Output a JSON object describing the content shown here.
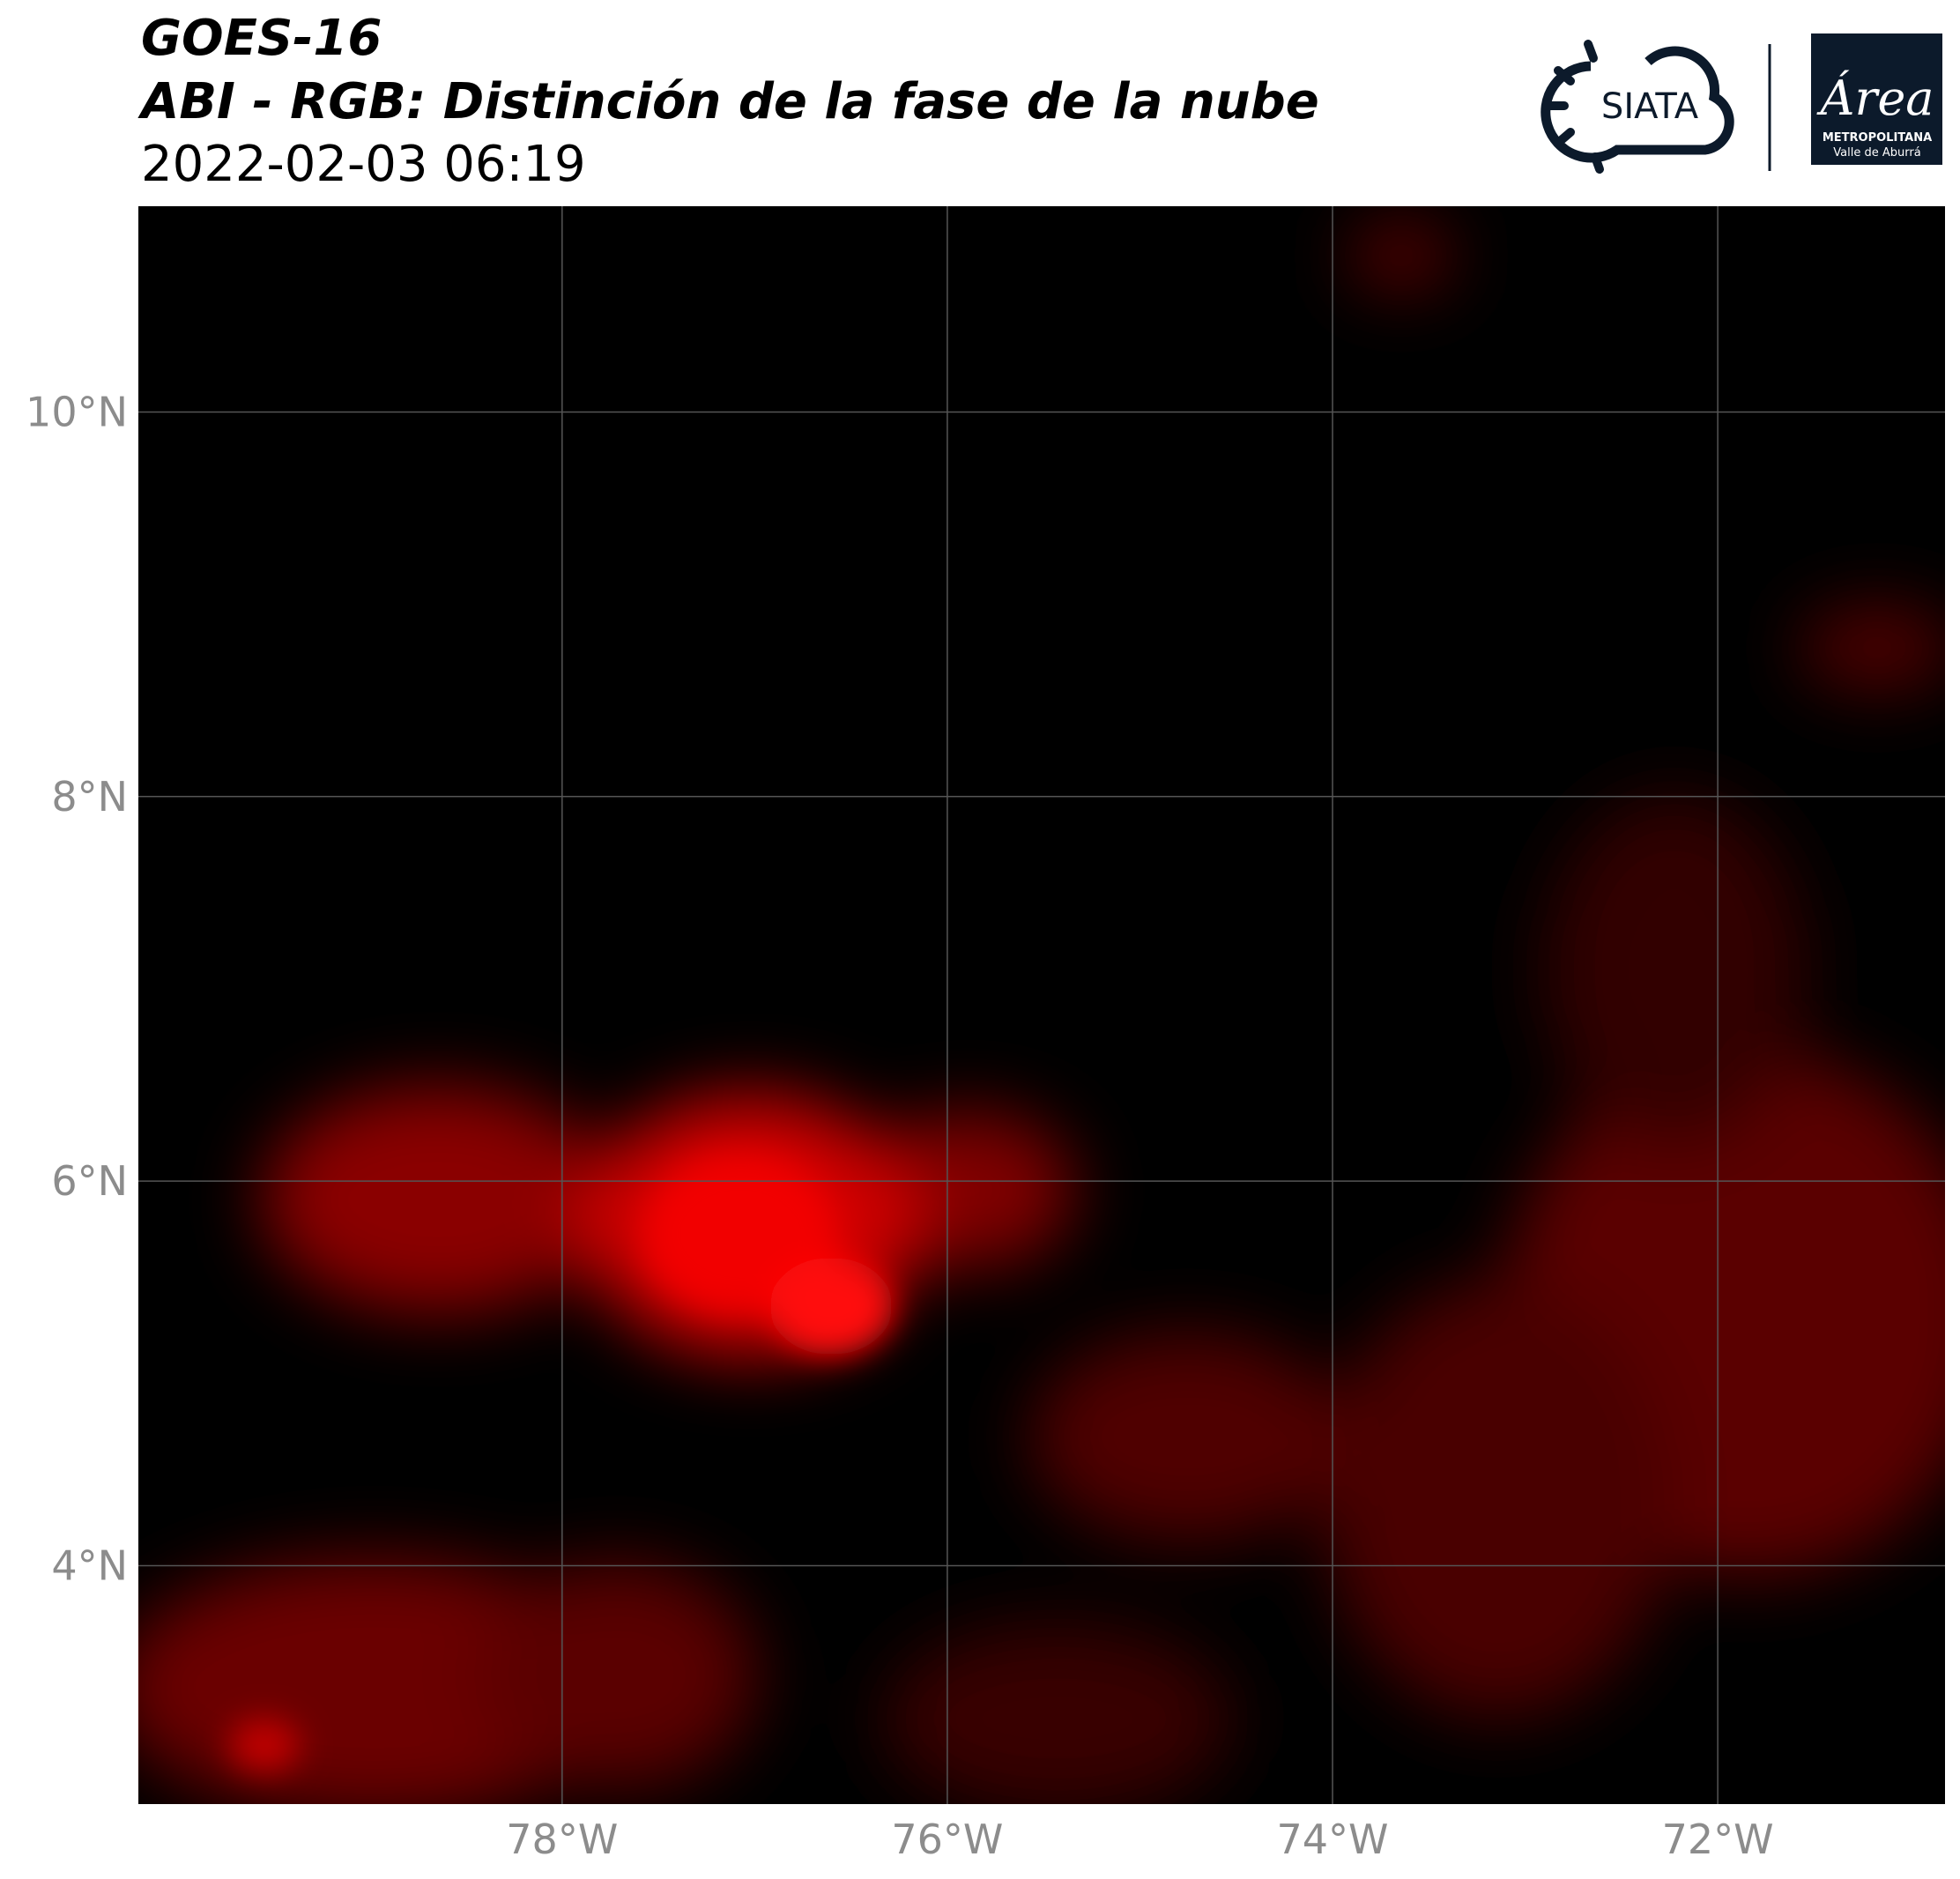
{
  "chart_data": {
    "type": "map",
    "title": "GOES-16",
    "subtitle": "ABI - RGB: Distinción de la fase de la nube",
    "date": "2022-02-03 06:19",
    "xlim": [
      -80.2,
      -70.82
    ],
    "ylim": [
      2.76,
      11.07
    ],
    "xticks": [
      {
        "value": -78,
        "label": "78°W"
      },
      {
        "value": -76,
        "label": "76°W"
      },
      {
        "value": -74,
        "label": "74°W"
      },
      {
        "value": -72,
        "label": "72°W"
      }
    ],
    "yticks": [
      {
        "value": 4,
        "label": "4°N"
      },
      {
        "value": 6,
        "label": "6°N"
      },
      {
        "value": 8,
        "label": "8°N"
      },
      {
        "value": 10,
        "label": "10°N"
      }
    ],
    "grid": true,
    "grid_color": "#555555"
  },
  "logos": {
    "siata": "SIATA",
    "area": "Área",
    "area_line1": "METROPOLITANA",
    "area_line2": "Valle de Aburrá"
  }
}
